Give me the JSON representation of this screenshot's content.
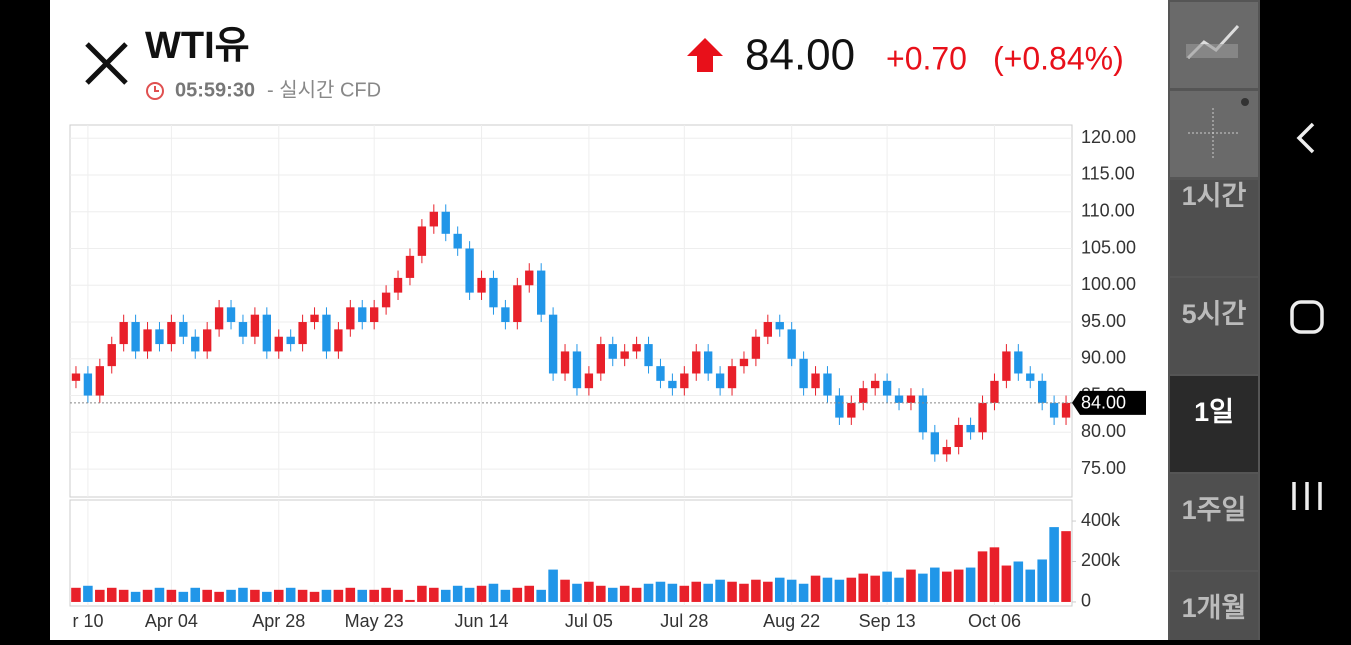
{
  "header": {
    "title": "WTI유",
    "time": "05:59:30",
    "source": "- 실시간 CFD",
    "price": "84.00",
    "change": "+0.70",
    "change_pct": "(+0.84%)"
  },
  "timeframes": [
    "1시간",
    "5시간",
    "1일",
    "1주일",
    "1개월"
  ],
  "selected_timeframe": 2,
  "chart_data": {
    "type": "candlestick",
    "categories": [
      null,
      "r 10",
      null,
      null,
      null,
      null,
      null,
      null,
      "Apr 04",
      null,
      null,
      null,
      null,
      null,
      null,
      null,
      null,
      "Apr 28",
      null,
      null,
      null,
      null,
      null,
      null,
      null,
      "May 23",
      null,
      null,
      null,
      null,
      null,
      null,
      null,
      null,
      "Jun 14",
      null,
      null,
      null,
      null,
      null,
      null,
      null,
      null,
      "Jul 05",
      null,
      null,
      null,
      null,
      null,
      null,
      null,
      "Jul 28",
      null,
      null,
      null,
      null,
      null,
      null,
      null,
      null,
      "Aug 22",
      null,
      null,
      null,
      null,
      null,
      null,
      null,
      "Sep 13",
      null,
      null,
      null,
      null,
      null,
      null,
      null,
      null,
      "Oct 06",
      null,
      null,
      null,
      null,
      null,
      null
    ],
    "open": [
      87,
      88,
      85,
      89,
      92,
      95,
      91,
      94,
      92,
      95,
      93,
      91,
      94,
      97,
      95,
      93,
      96,
      91,
      93,
      92,
      95,
      96,
      91,
      94,
      97,
      95,
      97,
      99,
      101,
      104,
      108,
      110,
      107,
      105,
      99,
      101,
      97,
      95,
      100,
      102,
      96,
      88,
      91,
      86,
      88,
      92,
      90,
      91,
      92,
      89,
      87,
      86,
      88,
      91,
      88,
      86,
      89,
      90,
      93,
      95,
      94,
      90,
      86,
      88,
      85,
      82,
      84,
      86,
      87,
      85,
      84,
      85,
      80,
      77,
      78,
      81,
      80,
      84,
      87,
      91,
      88,
      87,
      84,
      82
    ],
    "high": [
      89,
      89,
      90,
      93,
      96,
      96,
      95,
      95,
      96,
      96,
      94,
      95,
      98,
      98,
      96,
      97,
      97,
      94,
      94,
      96,
      97,
      97,
      95,
      98,
      98,
      98,
      100,
      102,
      105,
      109,
      111,
      111,
      108,
      106,
      102,
      102,
      98,
      101,
      103,
      103,
      97,
      92,
      92,
      89,
      93,
      93,
      92,
      93,
      93,
      90,
      88,
      89,
      92,
      92,
      89,
      90,
      91,
      94,
      96,
      96,
      95,
      91,
      89,
      89,
      86,
      85,
      87,
      88,
      88,
      86,
      86,
      86,
      81,
      79,
      82,
      82,
      85,
      88,
      92,
      92,
      89,
      88,
      85,
      85
    ],
    "low": [
      86,
      84,
      84,
      88,
      91,
      90,
      90,
      91,
      91,
      92,
      90,
      90,
      93,
      94,
      92,
      92,
      90,
      90,
      91,
      91,
      94,
      90,
      90,
      93,
      94,
      94,
      96,
      98,
      100,
      103,
      107,
      106,
      104,
      98,
      98,
      96,
      94,
      94,
      99,
      95,
      87,
      87,
      85,
      85,
      87,
      89,
      89,
      90,
      88,
      86,
      85,
      85,
      87,
      87,
      85,
      85,
      88,
      89,
      92,
      93,
      89,
      85,
      85,
      84,
      81,
      81,
      83,
      85,
      84,
      83,
      83,
      79,
      76,
      76,
      77,
      79,
      79,
      83,
      86,
      87,
      86,
      83,
      81,
      81
    ],
    "close": [
      88,
      85,
      89,
      92,
      95,
      91,
      94,
      92,
      95,
      93,
      91,
      94,
      97,
      95,
      93,
      96,
      91,
      93,
      92,
      95,
      96,
      91,
      94,
      97,
      95,
      97,
      99,
      101,
      104,
      108,
      110,
      107,
      105,
      99,
      101,
      97,
      95,
      100,
      102,
      96,
      88,
      91,
      86,
      88,
      92,
      90,
      91,
      92,
      89,
      87,
      86,
      88,
      91,
      88,
      86,
      89,
      90,
      93,
      95,
      94,
      90,
      86,
      88,
      85,
      82,
      84,
      86,
      87,
      85,
      84,
      85,
      80,
      77,
      78,
      81,
      80,
      84,
      87,
      91,
      88,
      87,
      84,
      82,
      84
    ],
    "up_color": "#e8202a",
    "down_color": "#2196e8",
    "ylim": [
      71.2,
      121.8
    ],
    "yticks": [
      {
        "value": 75,
        "label": "75.00"
      },
      {
        "value": 80,
        "label": "80.00"
      },
      {
        "value": 85,
        "label": "85.00"
      },
      {
        "value": 90,
        "label": "90.00"
      },
      {
        "value": 95,
        "label": "95.00"
      },
      {
        "value": 100,
        "label": "100.00"
      },
      {
        "value": 105,
        "label": "105.00"
      },
      {
        "value": 110,
        "label": "110.00"
      },
      {
        "value": 115,
        "label": "115.00"
      },
      {
        "value": 120,
        "label": "120.00"
      }
    ],
    "last_price": {
      "value": 84,
      "label": "84.00"
    },
    "grid": true,
    "volume": {
      "values": [
        70000,
        80000,
        60000,
        70000,
        60000,
        50000,
        60000,
        70000,
        60000,
        50000,
        70000,
        60000,
        50000,
        60000,
        70000,
        60000,
        50000,
        60000,
        70000,
        60000,
        50000,
        60000,
        60000,
        70000,
        60000,
        60000,
        70000,
        60000,
        10000,
        80000,
        70000,
        60000,
        80000,
        70000,
        80000,
        90000,
        60000,
        70000,
        80000,
        60000,
        160000,
        110000,
        90000,
        100000,
        80000,
        70000,
        80000,
        70000,
        90000,
        100000,
        90000,
        80000,
        100000,
        90000,
        110000,
        100000,
        90000,
        110000,
        100000,
        120000,
        110000,
        90000,
        130000,
        120000,
        110000,
        120000,
        140000,
        130000,
        150000,
        120000,
        160000,
        140000,
        170000,
        150000,
        160000,
        170000,
        250000,
        270000,
        180000,
        200000,
        160000,
        210000,
        370000,
        350000
      ],
      "ylim": [
        -20000,
        504000
      ],
      "yticks": [
        0,
        {
          "value": 200000,
          "label": "200k"
        },
        {
          "value": 400000,
          "label": "400k"
        }
      ]
    }
  }
}
